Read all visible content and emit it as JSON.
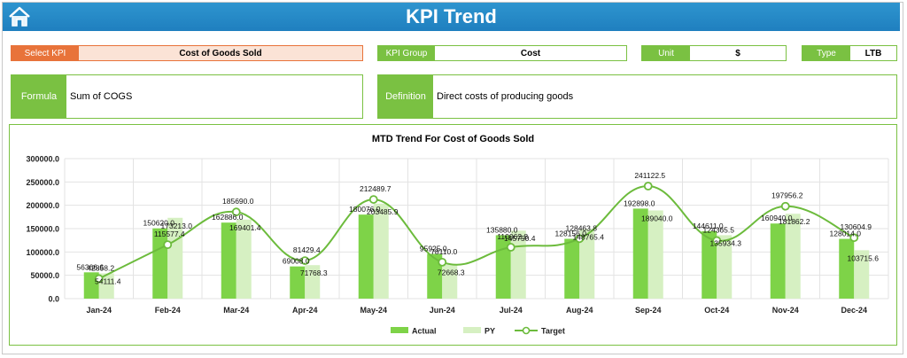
{
  "header": {
    "title": "KPI Trend",
    "home_icon": "home-icon"
  },
  "filters": {
    "select_kpi_label": "Select KPI",
    "select_kpi_value": "Cost of Goods Sold",
    "kpi_group_label": "KPI Group",
    "kpi_group_value": "Cost",
    "unit_label": "Unit",
    "unit_value": "$",
    "type_label": "Type",
    "type_value": "LTB"
  },
  "info": {
    "formula_label": "Formula",
    "formula_value": "Sum of COGS",
    "definition_label": "Definition",
    "definition_value": "Direct costs of producing goods"
  },
  "colors": {
    "header": "#1f7fbf",
    "accent_green": "#7ac142",
    "accent_orange": "#e8733a",
    "actual": "#7ed348",
    "py": "#d6f0c2",
    "target": "#6cbb3c"
  },
  "chart_data": {
    "type": "bar",
    "title": "MTD Trend For Cost of Goods Sold",
    "categories": [
      "Jan-24",
      "Feb-24",
      "Mar-24",
      "Apr-24",
      "May-24",
      "Jun-24",
      "Jul-24",
      "Aug-24",
      "Sep-24",
      "Oct-24",
      "Nov-24",
      "Dec-24"
    ],
    "ylim": [
      0,
      300000
    ],
    "yticks": [
      "0.0",
      "50000.0",
      "100000.0",
      "150000.0",
      "200000.0",
      "250000.0",
      "300000.0"
    ],
    "grid": true,
    "legend_position": "bottom",
    "series": [
      {
        "name": "Actual",
        "kind": "bar",
        "values": [
          56366.6,
          150620.0,
          162886.0,
          69008.0,
          180076.0,
          95925.0,
          135880.0,
          128156.0,
          192898.0,
          144611.0,
          160940.0,
          128014.0
        ],
        "labels": [
          "56366.6",
          "150620.0",
          "162886.0",
          "69008.0",
          "180076.0",
          "95925.0",
          "135880.0",
          "128156.0",
          "192898.0",
          "144611.0",
          "160940.0",
          "128014.0"
        ]
      },
      {
        "name": "PY",
        "kind": "bar",
        "values": [
          54111.4,
          173213.0,
          169401.4,
          71768.3,
          203485.9,
          72668.3,
          145750.4,
          148765.4,
          189040.0,
          135934.3,
          181862.2,
          103715.6
        ],
        "labels": [
          "54111.4",
          "173213.0",
          "169401.4",
          "71768.3",
          "203485.9",
          "72668.3",
          "145750.4",
          "148765.4",
          "189040.0",
          "135934.3",
          "181862.2",
          "103715.6"
        ]
      },
      {
        "name": "Target",
        "kind": "line",
        "values": [
          42858.2,
          115577.4,
          185690.0,
          81429.4,
          212489.7,
          78110.0,
          110062.8,
          128463.8,
          241122.5,
          124365.5,
          197956.2,
          130604.9
        ],
        "labels": [
          "42858.2",
          "115577.4",
          "185690.0",
          "81429.4",
          "212489.7",
          "78110.0",
          "110062.8",
          "128463.8",
          "241122.5",
          "124365.5",
          "197956.2",
          "130604.9"
        ]
      }
    ]
  }
}
